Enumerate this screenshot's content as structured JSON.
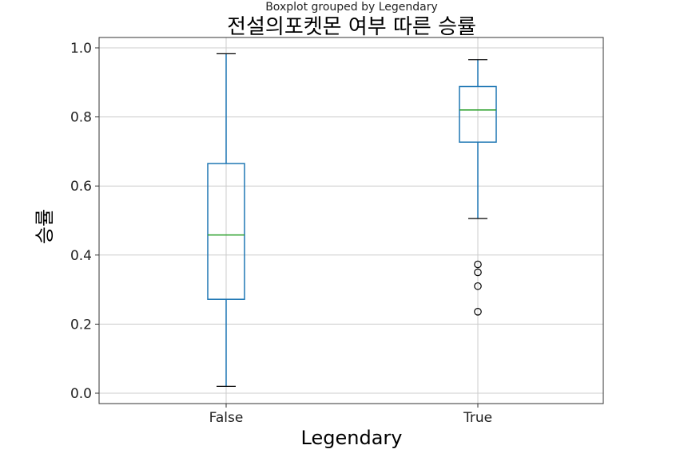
{
  "chart_data": {
    "type": "boxplot",
    "suptitle": "Boxplot grouped by Legendary",
    "title": "전설의포켓몬 여부 따른 승률",
    "xlabel": "Legendary",
    "ylabel": "승률",
    "ylim": [
      -0.03,
      1.03
    ],
    "yticks": [
      "0.0",
      "0.2",
      "0.4",
      "0.6",
      "0.8",
      "1.0"
    ],
    "ytick_values": [
      0.0,
      0.2,
      0.4,
      0.6,
      0.8,
      1.0
    ],
    "grid": true,
    "colors": {
      "box": "#1f77b4",
      "median": "#2ca02c",
      "whisker_cap": "#000000",
      "grid": "#cccccc",
      "axis": "#333333"
    },
    "categories": [
      "False",
      "True"
    ],
    "boxes": [
      {
        "label": "False",
        "whisker_low": 0.02,
        "q1": 0.272,
        "median": 0.458,
        "q3": 0.665,
        "whisker_high": 0.983,
        "outliers": []
      },
      {
        "label": "True",
        "whisker_low": 0.506,
        "q1": 0.727,
        "median": 0.82,
        "q3": 0.888,
        "whisker_high": 0.966,
        "outliers": [
          0.373,
          0.35,
          0.31,
          0.236
        ]
      }
    ]
  }
}
